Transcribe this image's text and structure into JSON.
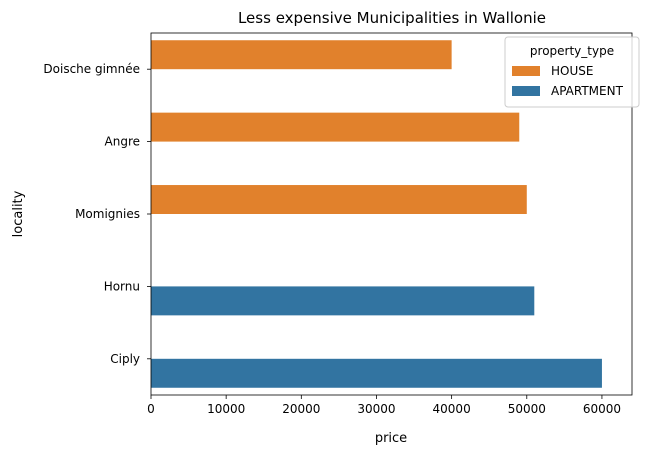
{
  "chart_data": {
    "type": "bar",
    "orientation": "horizontal",
    "title": "Less expensive Municipalities in Wallonie",
    "xlabel": "price",
    "ylabel": "locality",
    "xlim": [
      0,
      64000
    ],
    "x_ticks": [
      0,
      10000,
      20000,
      30000,
      40000,
      50000,
      60000
    ],
    "categories": [
      "Doische gimnée",
      "Angre",
      "Momignies",
      "Hornu",
      "Ciply"
    ],
    "series": [
      {
        "name": "HOUSE",
        "color": "#e1812c",
        "values": [
          40000,
          49000,
          50000,
          null,
          null
        ]
      },
      {
        "name": "APARTMENT",
        "color": "#3274a1",
        "values": [
          null,
          null,
          null,
          51000,
          60000
        ]
      }
    ],
    "legend": {
      "title": "property_type",
      "position": "top-right"
    },
    "grid": false
  }
}
